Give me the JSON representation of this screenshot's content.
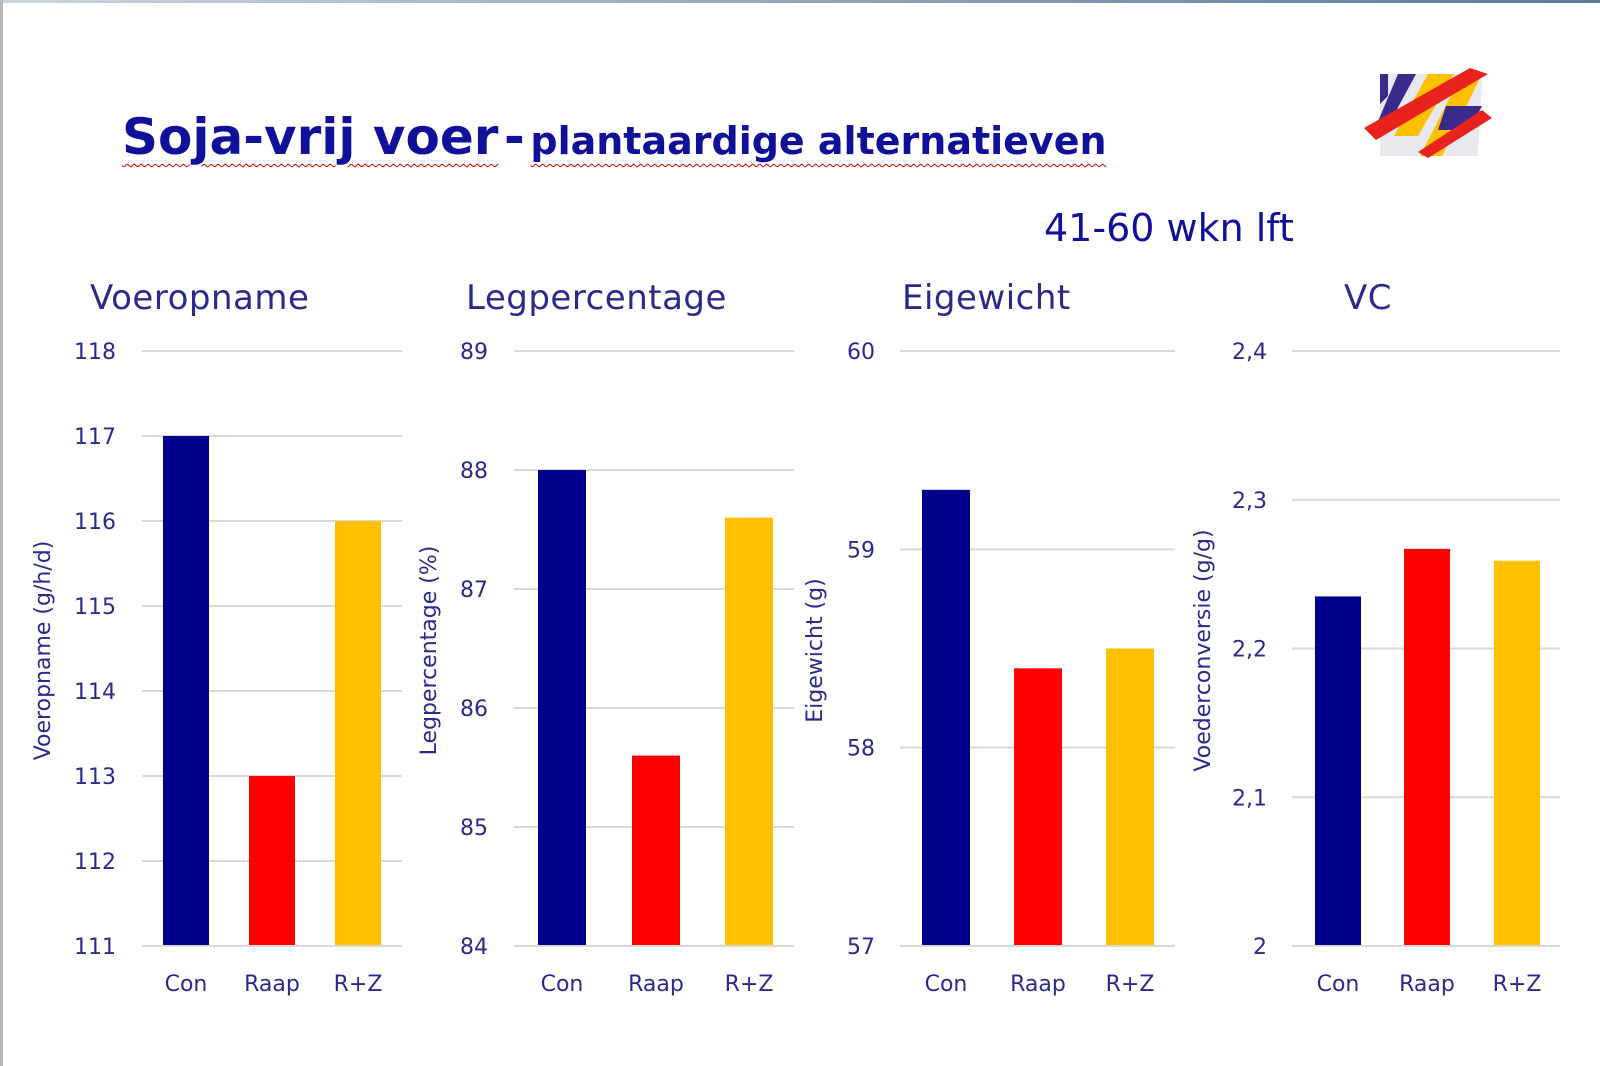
{
  "title": "Soja-vrij voer",
  "title_separator": "-",
  "title_rest": "plantaardige alternatieven",
  "subtitle": "41-60 wkn lft",
  "colors": {
    "Con": "#00008b",
    "Raap": "#ff0000",
    "R+Z": "#ffc000",
    "text": "#2a2a8c",
    "grid": "#d9d9d9"
  },
  "chart_data": [
    {
      "type": "bar",
      "title": "Voeropname",
      "ylabel": "Voeropname (g/h/d)",
      "categories": [
        "Con",
        "Raap",
        "R+Z"
      ],
      "values": [
        117,
        113,
        116
      ],
      "ylim": [
        111,
        118
      ],
      "ticks": [
        111,
        112,
        113,
        114,
        115,
        116,
        117,
        118
      ],
      "tick_labels": [
        "111",
        "112",
        "113",
        "114",
        "115",
        "116",
        "117",
        "118"
      ],
      "grid": true
    },
    {
      "type": "bar",
      "title": "Legpercentage",
      "ylabel": "Legpercentage (%)",
      "categories": [
        "Con",
        "Raap",
        "R+Z"
      ],
      "values": [
        88.0,
        85.6,
        87.6
      ],
      "ylim": [
        84,
        89
      ],
      "ticks": [
        84,
        85,
        86,
        87,
        88,
        89
      ],
      "tick_labels": [
        "84",
        "85",
        "86",
        "87",
        "88",
        "89"
      ],
      "grid": true
    },
    {
      "type": "bar",
      "title": "Eigewicht",
      "ylabel": "Eigewicht (g)",
      "categories": [
        "Con",
        "Raap",
        "R+Z"
      ],
      "values": [
        59.3,
        58.4,
        58.5
      ],
      "ylim": [
        57,
        60
      ],
      "ticks": [
        57,
        58,
        59,
        60
      ],
      "tick_labels": [
        "57",
        "58",
        "59",
        "60"
      ],
      "grid": true
    },
    {
      "type": "bar",
      "title": "VC",
      "ylabel": "Voederconversie (g/g)",
      "categories": [
        "Con",
        "Raap",
        "R+Z"
      ],
      "values": [
        2.235,
        2.267,
        2.259
      ],
      "ylim": [
        2.0,
        2.4
      ],
      "ticks": [
        2.0,
        2.1,
        2.2,
        2.3,
        2.4
      ],
      "tick_labels": [
        "2",
        "2,1",
        "2,2",
        "2,3",
        "2,4"
      ],
      "grid": true
    }
  ]
}
